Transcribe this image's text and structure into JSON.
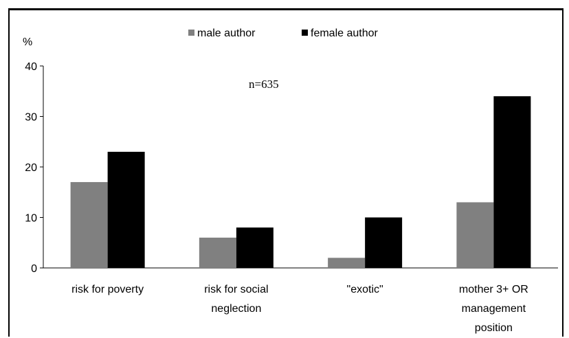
{
  "chart_data": {
    "type": "bar",
    "categories": [
      [
        "risk for poverty"
      ],
      [
        "risk for social",
        "neglection"
      ],
      [
        "\"exotic\""
      ],
      [
        "mother 3+ OR",
        "management",
        "position"
      ]
    ],
    "series": [
      {
        "name": "male author",
        "values": [
          17,
          6,
          2,
          13
        ],
        "color": "#808080"
      },
      {
        "name": "female author",
        "values": [
          23,
          8,
          10,
          34
        ],
        "color": "#000000"
      }
    ],
    "ylabel": "%",
    "ylim": [
      0,
      40
    ],
    "yticks": [
      0,
      10,
      20,
      30,
      40
    ],
    "annotation": "n=635",
    "legend_position": "top",
    "grid": false
  }
}
